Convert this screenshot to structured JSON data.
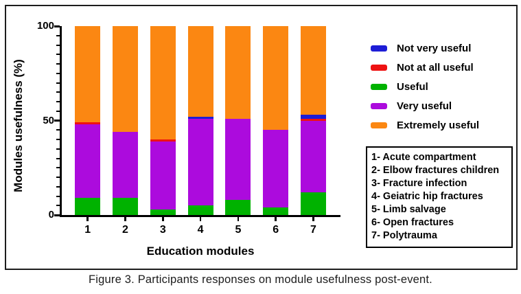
{
  "figure": {
    "caption": "Figure 3. Participants responses on module usefulness post-event."
  },
  "chart_data": {
    "type": "bar",
    "stacked": true,
    "orientation": "vertical",
    "title": "",
    "xlabel": "Education modules",
    "ylabel": "Modules usefulness (%)",
    "ylim": [
      0,
      100
    ],
    "yticks": [
      0,
      50,
      100
    ],
    "y_minor_tick_step": 5,
    "grid": false,
    "legend_position": "right",
    "categories": [
      "1",
      "2",
      "3",
      "4",
      "5",
      "6",
      "7"
    ],
    "series": [
      {
        "name": "Not very useful",
        "color": "#1d1dd6",
        "values": [
          0,
          0,
          0,
          1,
          0,
          0,
          2
        ]
      },
      {
        "name": "Not at all useful",
        "color": "#ee1212",
        "values": [
          1,
          0,
          1,
          0,
          0,
          0,
          1
        ]
      },
      {
        "name": "Useful",
        "color": "#00b200",
        "values": [
          9,
          9,
          3,
          5,
          8,
          4,
          12
        ]
      },
      {
        "name": "Very useful",
        "color": "#ac0bdd",
        "values": [
          39,
          35,
          36,
          46,
          43,
          41,
          38
        ]
      },
      {
        "name": "Extremely useful",
        "color": "#fb8712",
        "values": [
          51,
          56,
          60,
          48,
          49,
          55,
          47
        ]
      }
    ],
    "stack_order_bottom_up": [
      "Useful",
      "Very useful",
      "Not at all useful",
      "Not very useful",
      "Extremely useful"
    ]
  },
  "modules_box": {
    "items": [
      "1- Acute compartment",
      "2- Elbow fractures children",
      "3- Fracture infection",
      "4- Geiatric hip fractures",
      "5- Limb salvage",
      "6- Open fractures",
      "7- Polytrauma"
    ]
  }
}
